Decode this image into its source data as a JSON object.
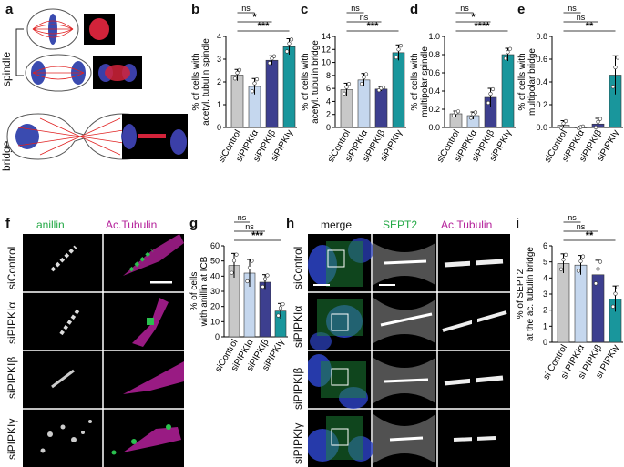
{
  "panels": {
    "a": {
      "letter": "a",
      "labels": {
        "spindle": "spindle",
        "bridge": "bridge"
      }
    },
    "b": {
      "letter": "b"
    },
    "c": {
      "letter": "c"
    },
    "d": {
      "letter": "d"
    },
    "e": {
      "letter": "e"
    },
    "f": {
      "letter": "f",
      "headers": [
        "anillin",
        "Ac.Tubulin"
      ],
      "rows": [
        "siControl",
        "siPIPKIα",
        "siPIPKIβ",
        "siPIPKIγ"
      ]
    },
    "g": {
      "letter": "g"
    },
    "h": {
      "letter": "h",
      "headers": [
        "merge",
        "SEPT2",
        "Ac.Tubulin"
      ],
      "rows": [
        "siControl",
        "siPIPKIα",
        "siPIPKIβ",
        "siPIPKIγ"
      ]
    },
    "i": {
      "letter": "i"
    }
  },
  "colors": {
    "control": "#c8c8c8",
    "alpha": "#c5d7ee",
    "beta": "#3d3f8f",
    "gamma": "#19969c",
    "anillin": "#22a844",
    "tubulin": "#b4209a"
  },
  "chart_data": [
    {
      "id": "b",
      "type": "bar",
      "ylabel_lines": [
        "% of cells with",
        "acetyl. tubulin spindle"
      ],
      "ylim": [
        0,
        4
      ],
      "yticks": [
        0,
        1,
        2,
        3,
        4
      ],
      "categories": [
        "siControl",
        "siPIPKIα",
        "siPIPKIβ",
        "siPIPKIγ"
      ],
      "values": [
        2.3,
        1.8,
        2.95,
        3.55
      ],
      "errors": [
        0.25,
        0.35,
        0.2,
        0.35
      ],
      "sig": [
        {
          "from": 0,
          "to": 1,
          "label": "ns"
        },
        {
          "from": 0,
          "to": 2,
          "label": "*"
        },
        {
          "from": 0,
          "to": 3,
          "label": "***"
        }
      ]
    },
    {
      "id": "c",
      "type": "bar",
      "ylabel_lines": [
        "% of cells with",
        "acetyl. tubulin bridge"
      ],
      "ylim": [
        0,
        14
      ],
      "yticks": [
        0,
        2,
        4,
        6,
        8,
        10,
        12,
        14
      ],
      "categories": [
        "siControl",
        "siPIPKIα",
        "siPIPKIβ",
        "siPIPKIγ"
      ],
      "values": [
        5.8,
        7.3,
        5.9,
        11.5
      ],
      "errors": [
        1.0,
        1.0,
        0.3,
        1.2
      ],
      "sig": [
        {
          "from": 0,
          "to": 1,
          "label": "ns"
        },
        {
          "from": 0,
          "to": 2,
          "label": "ns"
        },
        {
          "from": 0,
          "to": 3,
          "label": "***"
        }
      ]
    },
    {
      "id": "d",
      "type": "bar",
      "ylabel_lines": [
        "% of cells with",
        "multipolar spindle"
      ],
      "ylim": [
        0,
        1.0
      ],
      "yticks": [
        0.0,
        0.2,
        0.4,
        0.6,
        0.8,
        1.0
      ],
      "categories": [
        "siControl",
        "siPIPKIα",
        "siPIPKIβ",
        "siPIPKIγ"
      ],
      "values": [
        0.15,
        0.13,
        0.33,
        0.8
      ],
      "errors": [
        0.03,
        0.04,
        0.1,
        0.07
      ],
      "sig": [
        {
          "from": 0,
          "to": 1,
          "label": "ns"
        },
        {
          "from": 0,
          "to": 2,
          "label": "*"
        },
        {
          "from": 0,
          "to": 3,
          "label": "****"
        }
      ]
    },
    {
      "id": "e",
      "type": "bar",
      "ylabel_lines": [
        "% of cells with",
        "multipolar bridge"
      ],
      "ylim": [
        0,
        0.8
      ],
      "yticks": [
        0.0,
        0.2,
        0.4,
        0.6,
        0.8
      ],
      "categories": [
        "siControl",
        "siPIPKIα",
        "siPIPKIβ",
        "siPIPKIγ"
      ],
      "values": [
        0.02,
        0.0,
        0.03,
        0.46
      ],
      "errors": [
        0.04,
        0.01,
        0.05,
        0.17
      ],
      "sig": [
        {
          "from": 0,
          "to": 1,
          "label": "ns"
        },
        {
          "from": 0,
          "to": 2,
          "label": "ns"
        },
        {
          "from": 0,
          "to": 3,
          "label": "**"
        }
      ]
    },
    {
      "id": "g",
      "type": "bar",
      "ylabel_lines": [
        "% of cells",
        "with anillin at ICB"
      ],
      "ylim": [
        0,
        60
      ],
      "yticks": [
        0,
        10,
        20,
        30,
        40,
        50,
        60
      ],
      "categories": [
        "siControl",
        "siPIPKIα",
        "siPIPKIβ",
        "siPIPKIγ"
      ],
      "values": [
        47,
        42,
        36,
        17
      ],
      "errors": [
        8,
        9,
        5,
        5
      ],
      "sig": [
        {
          "from": 0,
          "to": 1,
          "label": "ns"
        },
        {
          "from": 0,
          "to": 2,
          "label": "ns"
        },
        {
          "from": 0,
          "to": 3,
          "label": "***"
        }
      ]
    },
    {
      "id": "i",
      "type": "bar",
      "ylabel_lines": [
        "% of SEPT2",
        "at the ac. tubulin bridge"
      ],
      "ylim": [
        0,
        6
      ],
      "yticks": [
        0,
        1,
        2,
        3,
        4,
        5,
        6
      ],
      "categories": [
        "si Control",
        "si PIPKIα",
        "si PIPKIβ",
        "si PIPKIγ"
      ],
      "values": [
        4.9,
        4.8,
        4.2,
        2.7
      ],
      "errors": [
        0.6,
        0.6,
        0.9,
        0.8
      ],
      "sig": [
        {
          "from": 0,
          "to": 1,
          "label": "ns"
        },
        {
          "from": 0,
          "to": 2,
          "label": "ns"
        },
        {
          "from": 0,
          "to": 3,
          "label": "**"
        }
      ]
    }
  ]
}
